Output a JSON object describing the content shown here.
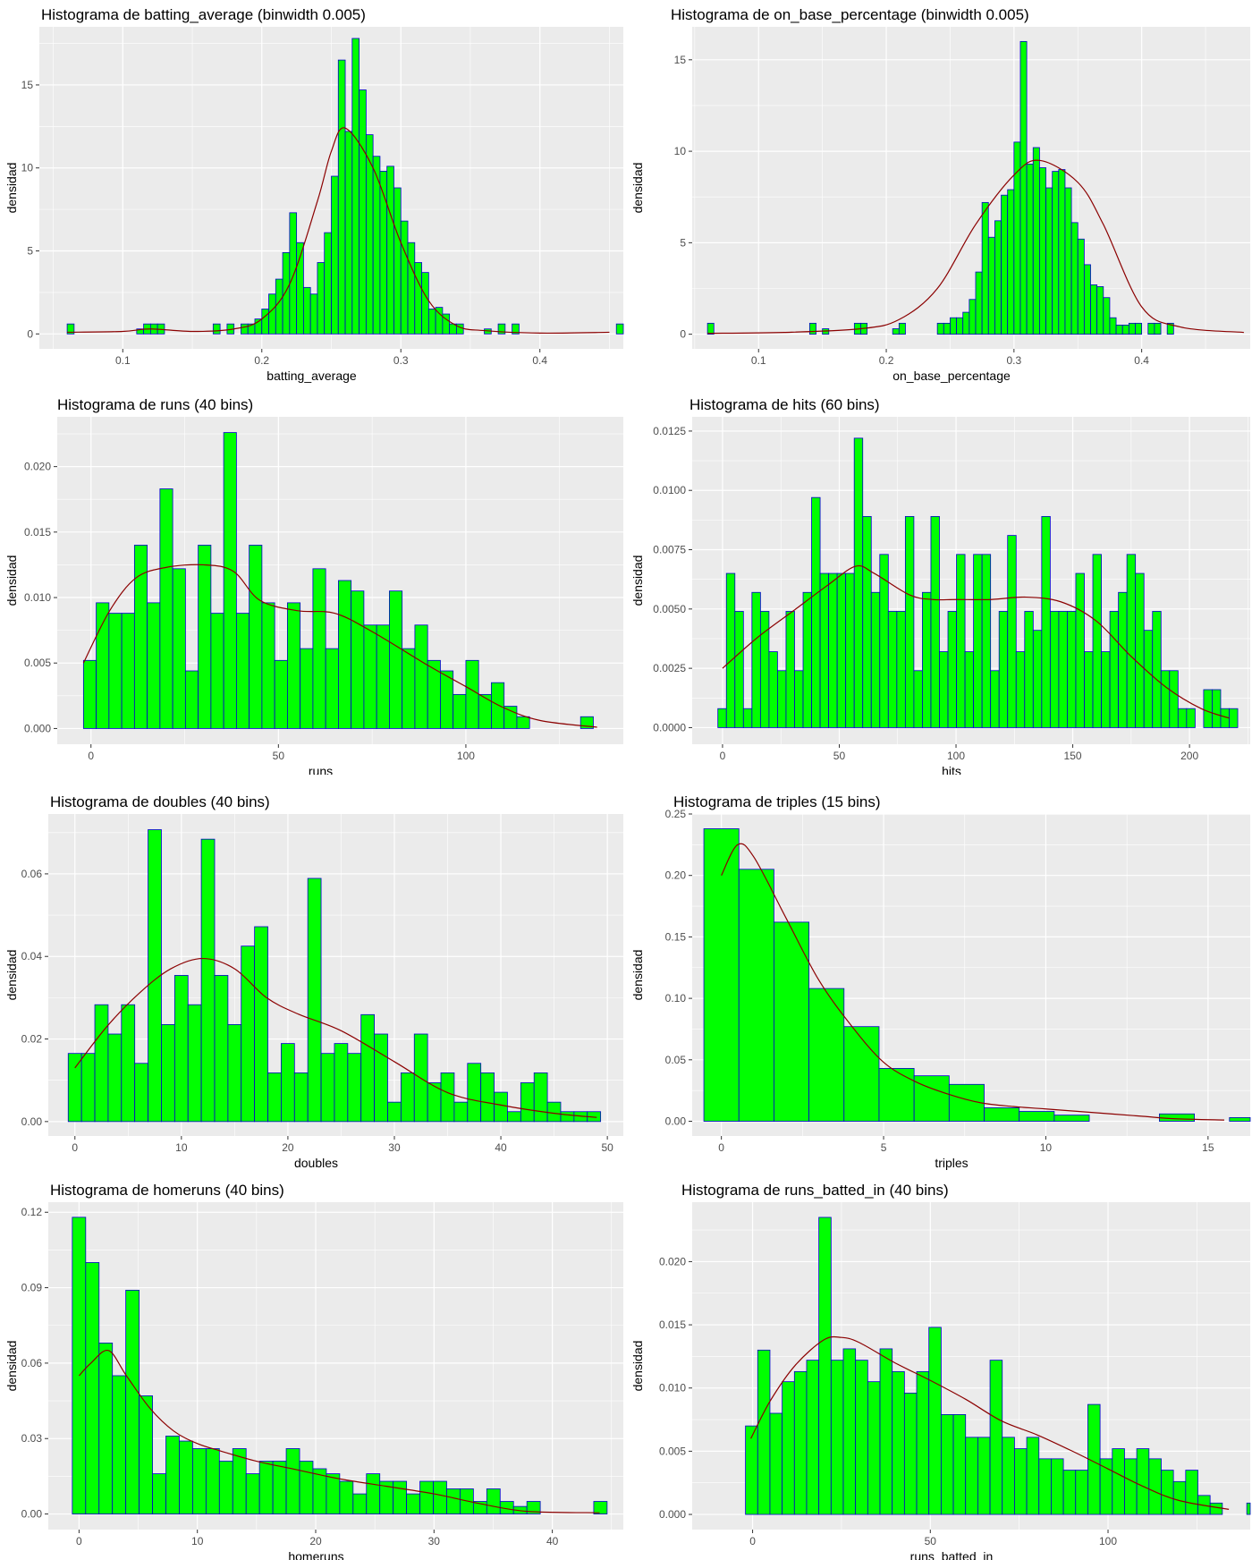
{
  "ylabel_common": "densidad",
  "colors": {
    "panel": "#EBEBEB",
    "grid_major": "#FFFFFF",
    "bar_fill": "#00FF00",
    "bar_stroke": "#0000CD",
    "density_line": "#8B0000"
  },
  "chart_data": [
    {
      "type": "bar",
      "title": "Histograma de batting_average (binwidth 0.005)",
      "xlabel": "batting_average",
      "ylabel": "densidad",
      "x_start": 0.06,
      "bin_width": 0.005,
      "values": [
        0.6,
        0,
        0,
        0,
        0,
        0,
        0,
        0,
        0,
        0,
        0.3,
        0.6,
        0.6,
        0.6,
        0,
        0,
        0,
        0,
        0,
        0,
        0,
        0.6,
        0,
        0.6,
        0,
        0.6,
        0.6,
        0.9,
        1.5,
        2.4,
        3.3,
        4.9,
        7.3,
        5.5,
        2.8,
        2.4,
        4.3,
        6.1,
        9.5,
        16.5,
        12.2,
        17.8,
        14.7,
        12,
        10.7,
        9.8,
        10.1,
        8.8,
        6.8,
        5.5,
        4.3,
        3.7,
        1.5,
        1.6,
        1.2,
        0.6,
        0.6,
        0,
        0,
        0,
        0.3,
        0,
        0.6,
        0,
        0.6,
        0,
        0,
        0,
        0,
        0,
        0,
        0,
        0,
        0,
        0,
        0,
        0,
        0,
        0,
        0.6
      ],
      "density": {
        "x": [
          0.06,
          0.1,
          0.12,
          0.15,
          0.18,
          0.2,
          0.22,
          0.24,
          0.25,
          0.26,
          0.28,
          0.3,
          0.32,
          0.34,
          0.36,
          0.4,
          0.45
        ],
        "y": [
          0.1,
          0.15,
          0.3,
          0.15,
          0.3,
          0.9,
          3,
          8,
          11,
          12.4,
          10,
          5.5,
          2,
          0.5,
          0.2,
          0.05,
          0.1
        ]
      },
      "xlim": [
        0.04,
        0.46
      ],
      "ylim": [
        -0.9,
        18.5
      ],
      "xticks": [
        0.1,
        0.2,
        0.3,
        0.4
      ],
      "xtick_labels": [
        "0.1",
        "0.2",
        "0.3",
        "0.4"
      ],
      "yticks": [
        0,
        5,
        10,
        15
      ],
      "ytick_labels": [
        "0",
        "5",
        "10",
        "15"
      ]
    },
    {
      "type": "bar",
      "title": "Histograma de on_base_percentage (binwidth 0.005)",
      "xlabel": "on_base_percentage",
      "ylabel": "densidad",
      "x_start": 0.06,
      "bin_width": 0.005,
      "values": [
        0.6,
        0,
        0,
        0,
        0,
        0,
        0,
        0,
        0,
        0,
        0,
        0,
        0,
        0,
        0,
        0,
        0.6,
        0,
        0.3,
        0,
        0,
        0,
        0,
        0.6,
        0.6,
        0,
        0,
        0,
        0,
        0.3,
        0.6,
        0,
        0,
        0,
        0,
        0,
        0.6,
        0.6,
        0.9,
        0.9,
        1.2,
        1.9,
        3.4,
        7.2,
        5.3,
        6.2,
        7.6,
        7.9,
        10.5,
        16,
        9.3,
        10.2,
        9.1,
        8,
        8.9,
        9,
        8,
        6.1,
        5.2,
        3.8,
        2.7,
        2.6,
        2,
        0.9,
        0.5,
        0.5,
        0.6,
        0.6,
        0,
        0.6,
        0.6,
        0,
        0.6,
        0,
        0,
        0,
        0,
        0,
        0,
        0,
        0,
        0,
        0,
        0,
        0,
        0,
        0,
        0,
        0.6
      ],
      "density": {
        "x": [
          0.06,
          0.12,
          0.18,
          0.21,
          0.24,
          0.27,
          0.3,
          0.32,
          0.35,
          0.37,
          0.4,
          0.43,
          0.48
        ],
        "y": [
          0.05,
          0.1,
          0.3,
          0.8,
          2.5,
          6,
          8.7,
          9.5,
          8.3,
          6,
          1.5,
          0.4,
          0.1
        ]
      },
      "xlim": [
        0.048,
        0.485
      ],
      "ylim": [
        -0.8,
        16.8
      ],
      "xticks": [
        0.1,
        0.2,
        0.3,
        0.4
      ],
      "xtick_labels": [
        "0.1",
        "0.2",
        "0.3",
        "0.4"
      ],
      "yticks": [
        0,
        5,
        10,
        15
      ],
      "ytick_labels": [
        "0",
        "5",
        "10",
        "15"
      ]
    },
    {
      "type": "bar",
      "title": "Histograma de runs (40 bins)",
      "xlabel": "runs",
      "ylabel": "densidad",
      "x_start": -2.0,
      "bin_width": 3.4,
      "values": [
        0.0052,
        0.0096,
        0.0088,
        0.0088,
        0.014,
        0.0096,
        0.0183,
        0.0122,
        0.0044,
        0.014,
        0.0088,
        0.0226,
        0.0088,
        0.014,
        0.0096,
        0.0052,
        0.0096,
        0.0061,
        0.0122,
        0.0061,
        0.0113,
        0.0105,
        0.0079,
        0.0079,
        0.0105,
        0.0061,
        0.0079,
        0.0052,
        0.0044,
        0.0026,
        0.0052,
        0.0026,
        0.0035,
        0.0017,
        0.0009,
        0,
        0,
        0,
        0,
        0.0009
      ],
      "density": {
        "x": [
          -2,
          5,
          12,
          20,
          30,
          38,
          45,
          55,
          65,
          75,
          90,
          100,
          110,
          120,
          135
        ],
        "y": [
          0.005,
          0.009,
          0.0115,
          0.0123,
          0.0125,
          0.012,
          0.0098,
          0.009,
          0.0088,
          0.0074,
          0.0048,
          0.0032,
          0.0016,
          0.0006,
          0.0001
        ]
      },
      "xlim": [
        -9,
        142
      ],
      "ylim": [
        -0.0012,
        0.0238
      ],
      "xticks": [
        0,
        50,
        100
      ],
      "xtick_labels": [
        "0",
        "50",
        "100"
      ],
      "yticks": [
        0,
        0.005,
        0.01,
        0.015,
        0.02
      ],
      "ytick_labels": [
        "0.000",
        "0.005",
        "0.010",
        "0.015",
        "0.020"
      ]
    },
    {
      "type": "bar",
      "title": "Histograma de hits (60 bins)",
      "xlabel": "hits",
      "ylabel": "densidad",
      "x_start": -2.0,
      "bin_width": 3.65,
      "values": [
        0.0008,
        0.0065,
        0.0049,
        0.0008,
        0.0057,
        0.0049,
        0.0032,
        0.0024,
        0.0049,
        0.0024,
        0.0057,
        0.0097,
        0.0065,
        0.0065,
        0.0065,
        0.0065,
        0.0122,
        0.0089,
        0.0057,
        0.0073,
        0.0049,
        0.0049,
        0.0089,
        0.0024,
        0.0057,
        0.0089,
        0.0032,
        0.0049,
        0.0073,
        0.0032,
        0.0073,
        0.0073,
        0.0024,
        0.0049,
        0.0081,
        0.0032,
        0.0049,
        0.0041,
        0.0089,
        0.0049,
        0.0049,
        0.0049,
        0.0065,
        0.0032,
        0.0073,
        0.0032,
        0.0049,
        0.0057,
        0.0073,
        0.0065,
        0.0041,
        0.0049,
        0.0024,
        0.0024,
        0.0008,
        0.0008,
        0,
        0.0016,
        0.0016,
        0.0008,
        0.0008
      ],
      "density": {
        "x": [
          0,
          15,
          30,
          45,
          57,
          65,
          80,
          90,
          100,
          115,
          130,
          145,
          160,
          175,
          190,
          205,
          217
        ],
        "y": [
          0.0025,
          0.0038,
          0.0049,
          0.006,
          0.0068,
          0.0065,
          0.0056,
          0.0054,
          0.0054,
          0.0054,
          0.0055,
          0.0053,
          0.0045,
          0.003,
          0.0017,
          0.0008,
          0.0004
        ]
      },
      "xlim": [
        -13,
        226
      ],
      "ylim": [
        -0.0007,
        0.0131
      ],
      "xticks": [
        0,
        50,
        100,
        150,
        200
      ],
      "xtick_labels": [
        "0",
        "50",
        "100",
        "150",
        "200"
      ],
      "yticks": [
        0,
        0.0025,
        0.005,
        0.0075,
        0.01,
        0.0125
      ],
      "ytick_labels": [
        "0.0000",
        "0.0025",
        "0.0050",
        "0.0075",
        "0.0100",
        "0.0125"
      ]
    },
    {
      "type": "bar",
      "title": "Histograma de doubles (40 bins)",
      "xlabel": "doubles",
      "ylabel": "densidad",
      "x_start": -0.63,
      "bin_width": 1.25,
      "values": [
        0.0165,
        0.0165,
        0.0283,
        0.0212,
        0.0283,
        0.0141,
        0.0707,
        0.0235,
        0.0354,
        0.0283,
        0.0684,
        0.0354,
        0.0235,
        0.0425,
        0.0472,
        0.0118,
        0.0189,
        0.0118,
        0.0589,
        0.0165,
        0.0189,
        0.0165,
        0.0259,
        0.0212,
        0.0047,
        0.0118,
        0.0212,
        0.0094,
        0.0118,
        0.0047,
        0.0141,
        0.0118,
        0.0071,
        0.0024,
        0.0094,
        0.0118,
        0.0047,
        0.0024,
        0.0024,
        0.0024
      ],
      "density": {
        "x": [
          0,
          3,
          6,
          9,
          12,
          15,
          18,
          21,
          25,
          30,
          35,
          40,
          45,
          49
        ],
        "y": [
          0.013,
          0.023,
          0.031,
          0.037,
          0.0395,
          0.037,
          0.03,
          0.026,
          0.022,
          0.0145,
          0.007,
          0.004,
          0.002,
          0.001
        ]
      },
      "xlim": [
        -2.5,
        51.5
      ],
      "ylim": [
        -0.0035,
        0.0745
      ],
      "xticks": [
        0,
        10,
        20,
        30,
        40,
        50
      ],
      "xtick_labels": [
        "0",
        "10",
        "20",
        "30",
        "40",
        "50"
      ],
      "yticks": [
        0,
        0.02,
        0.04,
        0.06
      ],
      "ytick_labels": [
        "0.00",
        "0.02",
        "0.04",
        "0.06"
      ]
    },
    {
      "type": "bar",
      "title": "Histograma de triples (15 bins)",
      "xlabel": "triples",
      "ylabel": "densidad",
      "x_start": -0.54,
      "bin_width": 1.08,
      "values": [
        0.238,
        0.205,
        0.162,
        0.108,
        0.077,
        0.043,
        0.037,
        0.03,
        0.011,
        0.008,
        0.005,
        0,
        0,
        0.006,
        0,
        0.003
      ],
      "density": {
        "x": [
          0,
          0.5,
          1,
          2,
          3,
          4,
          5,
          6,
          7,
          8,
          9,
          10,
          12,
          13,
          14,
          15.5
        ],
        "y": [
          0.2,
          0.225,
          0.215,
          0.165,
          0.115,
          0.078,
          0.048,
          0.032,
          0.022,
          0.015,
          0.012,
          0.01,
          0.006,
          0.004,
          0.002,
          0.001
        ]
      },
      "xlim": [
        -0.9,
        16.3
      ],
      "ylim": [
        -0.012,
        0.25
      ],
      "xticks": [
        0,
        5,
        10,
        15
      ],
      "xtick_labels": [
        "0",
        "5",
        "10",
        "15"
      ],
      "yticks": [
        0,
        0.05,
        0.1,
        0.15,
        0.2,
        0.25
      ],
      "ytick_labels": [
        "0.00",
        "0.05",
        "0.10",
        "0.15",
        "0.20",
        "0.25"
      ]
    },
    {
      "type": "bar",
      "title": "Histograma de homeruns (40 bins)",
      "xlabel": "homeruns",
      "ylabel": "densidad",
      "x_start": -0.57,
      "bin_width": 1.13,
      "values": [
        0.118,
        0.1,
        0.068,
        0.055,
        0.089,
        0.047,
        0.016,
        0.031,
        0.029,
        0.026,
        0.026,
        0.021,
        0.026,
        0.016,
        0.021,
        0.021,
        0.026,
        0.021,
        0.018,
        0.016,
        0.013,
        0.008,
        0.016,
        0.013,
        0.013,
        0.008,
        0.013,
        0.013,
        0.01,
        0.01,
        0.005,
        0.01,
        0.005,
        0.003,
        0.005,
        0,
        0,
        0,
        0,
        0.005
      ],
      "density": {
        "x": [
          0,
          1,
          2.5,
          4,
          6,
          8,
          10,
          12,
          15,
          18,
          22,
          26,
          30,
          34,
          38,
          44
        ],
        "y": [
          0.055,
          0.06,
          0.065,
          0.055,
          0.042,
          0.033,
          0.028,
          0.025,
          0.021,
          0.018,
          0.014,
          0.011,
          0.008,
          0.004,
          0.001,
          0.0005
        ]
      },
      "xlim": [
        -2.6,
        46
      ],
      "ylim": [
        -0.0062,
        0.124
      ],
      "xticks": [
        0,
        10,
        20,
        30,
        40
      ],
      "xtick_labels": [
        "0",
        "10",
        "20",
        "30",
        "40"
      ],
      "yticks": [
        0,
        0.03,
        0.06,
        0.09,
        0.12
      ],
      "ytick_labels": [
        "0.00",
        "0.03",
        "0.06",
        "0.09",
        "0.12"
      ]
    },
    {
      "type": "bar",
      "title": "Histograma de runs_batted_in (40 bins)",
      "xlabel": "runs_batted_in",
      "ylabel": "densidad",
      "x_start": -2.0,
      "bin_width": 3.44,
      "values": [
        0.007,
        0.013,
        0.008,
        0.0105,
        0.0113,
        0.0122,
        0.0235,
        0.0122,
        0.0131,
        0.0122,
        0.0105,
        0.0131,
        0.0113,
        0.0096,
        0.0113,
        0.0148,
        0.0079,
        0.0079,
        0.0061,
        0.0061,
        0.0122,
        0.0061,
        0.0052,
        0.0061,
        0.0044,
        0.0044,
        0.0035,
        0.0035,
        0.0087,
        0.0044,
        0.0052,
        0.0044,
        0.0052,
        0.0044,
        0.0035,
        0.0026,
        0.0035,
        0.0015,
        0.0009,
        0,
        0,
        0.0009
      ],
      "density": {
        "x": [
          -0.5,
          5,
          12,
          20,
          25,
          30,
          40,
          50,
          60,
          70,
          80,
          90,
          100,
          110,
          120,
          134
        ],
        "y": [
          0.006,
          0.009,
          0.0118,
          0.0138,
          0.014,
          0.0136,
          0.012,
          0.0106,
          0.0091,
          0.0074,
          0.0063,
          0.005,
          0.0036,
          0.0022,
          0.0011,
          0.0004
        ]
      },
      "xlim": [
        -17,
        140
      ],
      "ylim": [
        -0.0012,
        0.0247
      ],
      "xticks": [
        0,
        50,
        100
      ],
      "xtick_labels": [
        "0",
        "50",
        "100"
      ],
      "yticks": [
        0,
        0.005,
        0.01,
        0.015,
        0.02
      ],
      "ytick_labels": [
        "0.000",
        "0.005",
        "0.010",
        "0.015",
        "0.020"
      ]
    }
  ]
}
